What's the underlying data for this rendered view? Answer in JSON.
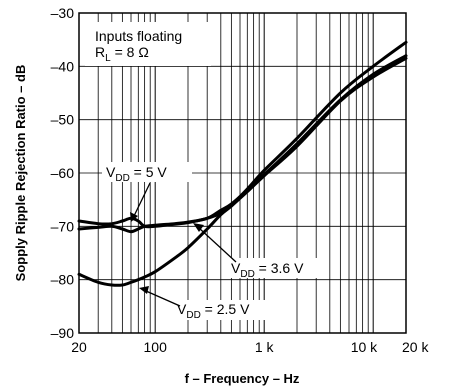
{
  "chart_data": {
    "type": "line",
    "xlabel": "f – Frequency – Hz",
    "ylabel": "Sopply Ripple Rejection Ratio – dB",
    "xscale": "log",
    "xlim": [
      20,
      20000
    ],
    "ylim": [
      -90,
      -30
    ],
    "grid": true,
    "x_ticks": [
      {
        "value": 20,
        "label": "20"
      },
      {
        "value": 100,
        "label": "100"
      },
      {
        "value": 1000,
        "label": "1 k"
      },
      {
        "value": 10000,
        "label": "10 k"
      },
      {
        "value": 20000,
        "label": "20 k"
      }
    ],
    "y_ticks": [
      {
        "value": -30,
        "label": "–30"
      },
      {
        "value": -40,
        "label": "–40"
      },
      {
        "value": -50,
        "label": "–50"
      },
      {
        "value": -60,
        "label": "–60"
      },
      {
        "value": -70,
        "label": "–70"
      },
      {
        "value": -80,
        "label": "–80"
      },
      {
        "value": -90,
        "label": "–90"
      }
    ],
    "conditions": {
      "line1": "Inputs floating",
      "rl_main": "R",
      "rl_sub": "L",
      "rl_value": " = 8 Ω"
    },
    "series": [
      {
        "id": "vdd5",
        "label_main": "V",
        "label_sub": "DD",
        "label_value": " = 5 V",
        "x": [
          20,
          30,
          40,
          50,
          60,
          70,
          80,
          100,
          150,
          200,
          300,
          400,
          500,
          700,
          1000,
          2000,
          5000,
          10000,
          20000
        ],
        "y": [
          -69,
          -69.5,
          -69.5,
          -69,
          -68.5,
          -69,
          -70,
          -70,
          -69.6,
          -69.3,
          -68.5,
          -67.5,
          -66,
          -63,
          -59.5,
          -53.5,
          -45,
          -40,
          -35.5
        ]
      },
      {
        "id": "vdd36",
        "label_main": "V",
        "label_sub": "DD",
        "label_value": " = 3.6 V",
        "x": [
          20,
          30,
          40,
          50,
          60,
          70,
          80,
          100,
          150,
          200,
          300,
          400,
          500,
          700,
          1000,
          2000,
          5000,
          10000,
          20000
        ],
        "y": [
          -70.5,
          -70.2,
          -70,
          -70.5,
          -71,
          -70.5,
          -70,
          -69.8,
          -69.5,
          -69.2,
          -68.5,
          -67,
          -65.8,
          -63.2,
          -60.3,
          -54.5,
          -46.3,
          -41.5,
          -38
        ]
      },
      {
        "id": "vdd25",
        "label_main": "V",
        "label_sub": "DD",
        "label_value": " = 2.5 V",
        "x": [
          20,
          30,
          40,
          50,
          60,
          70,
          80,
          100,
          150,
          200,
          300,
          400,
          500,
          700,
          1000,
          2000,
          5000,
          10000,
          20000
        ],
        "y": [
          -79,
          -80.5,
          -81,
          -81,
          -80.5,
          -80,
          -79.5,
          -78.5,
          -76,
          -74,
          -70.5,
          -67.8,
          -66.2,
          -63.5,
          -60.5,
          -55,
          -46.5,
          -42,
          -38.5
        ]
      }
    ]
  }
}
